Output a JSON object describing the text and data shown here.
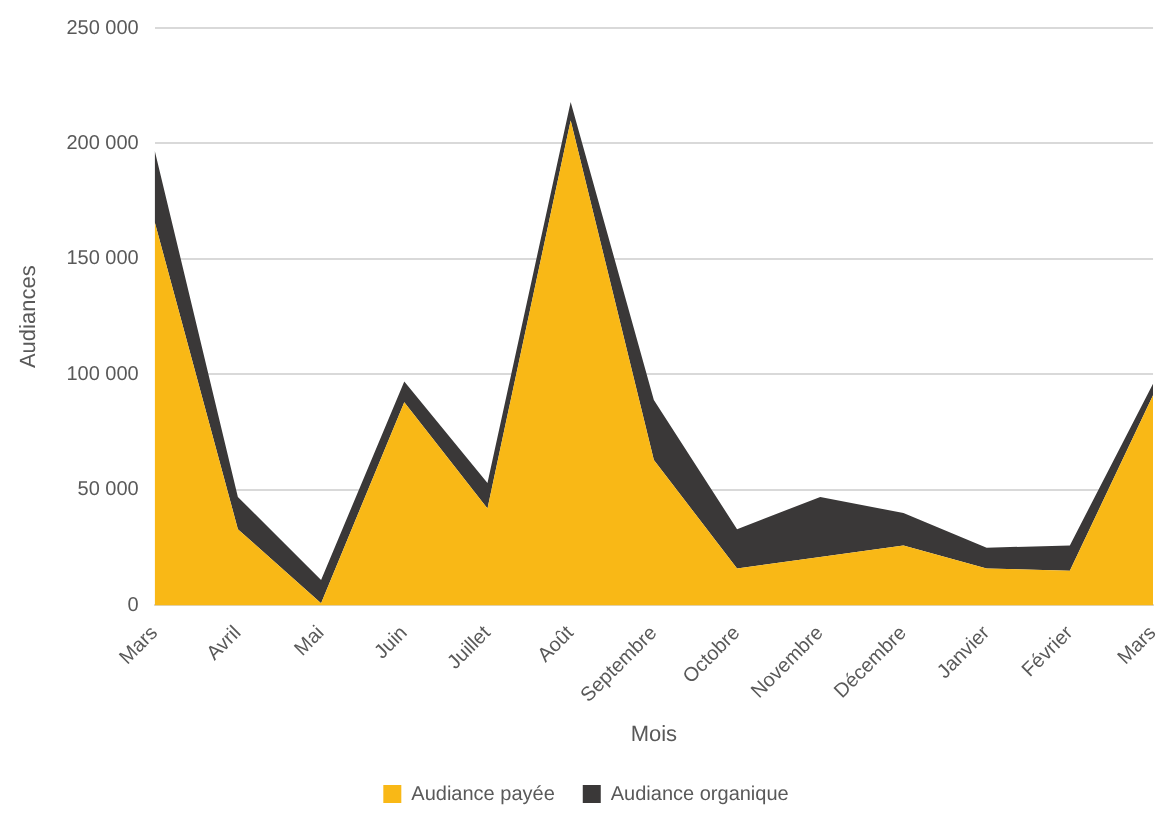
{
  "chart_data": {
    "type": "area",
    "stacked": true,
    "xlabel": "Mois",
    "ylabel": "Audiances",
    "categories": [
      "Mars",
      "Avril",
      "Mai",
      "Juin",
      "Juillet",
      "Août",
      "Septembre",
      "Octobre",
      "Novembre",
      "Décembre",
      "Janvier",
      "Février",
      "Mars"
    ],
    "series": [
      {
        "name": "Audiance payée",
        "color": "#f9b816",
        "values": [
          166000,
          33000,
          1000,
          88000,
          42000,
          210000,
          63000,
          16000,
          21000,
          26000,
          16000,
          15000,
          91000
        ]
      },
      {
        "name": "Audiance organique",
        "color": "#3a3838",
        "values": [
          31000,
          14000,
          10000,
          9000,
          11000,
          8000,
          26000,
          17000,
          26000,
          14000,
          9000,
          11000,
          5000
        ]
      }
    ],
    "ylim": [
      0,
      250000
    ],
    "yticks": [
      0,
      {
        "value": 50000,
        "label": "50 000"
      },
      {
        "value": 100000,
        "label": "100 000"
      },
      {
        "value": 150000,
        "label": "150 000"
      },
      {
        "value": 200000,
        "label": "200 000"
      },
      {
        "value": 250000,
        "label": "250 000"
      }
    ],
    "grid": "y",
    "legend": "bottom"
  }
}
